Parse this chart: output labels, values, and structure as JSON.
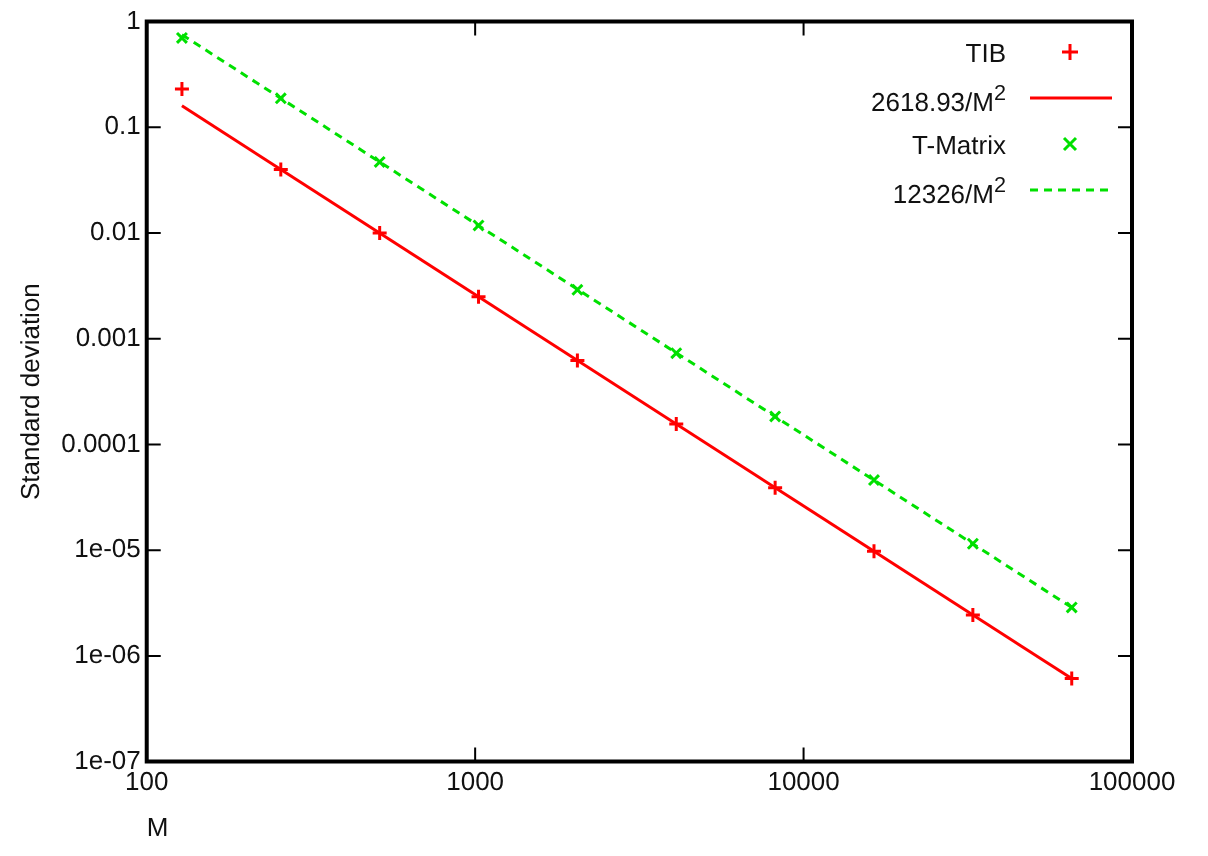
{
  "chart_data": {
    "type": "scatter",
    "xlabel": "M",
    "ylabel": "Standard deviation",
    "log": "xy",
    "grid": false,
    "legend": "top right",
    "xlim": [
      100,
      100000
    ],
    "xticks": [
      100,
      1000,
      10000,
      100000
    ],
    "ylim": [
      1e-07,
      1
    ],
    "yticks": [
      {
        "value": 1e-07,
        "label": "1e-07"
      },
      {
        "value": 1e-06,
        "label": "1e-06"
      },
      {
        "value": 1e-05,
        "label": "1e-05"
      },
      0.0001,
      0.001,
      0.01,
      0.1,
      1
    ],
    "series": [
      {
        "name": "TIB",
        "marker": "cross",
        "color": "#ff0000",
        "x": [
          128,
          256,
          512,
          1024,
          2048,
          4096,
          8192,
          16384,
          32768,
          65536
        ],
        "values": [
          0.23,
          0.04,
          0.01,
          0.0025,
          0.000624,
          0.000156,
          3.9e-05,
          9.76e-06,
          2.44e-06,
          6.1e-07
        ]
      },
      {
        "name": "2618.93/M$^{2}$",
        "type": "line",
        "marker": "none",
        "line_style": "solid",
        "color": "#ff0000",
        "x": [
          128,
          65536
        ],
        "values": [
          0.15985,
          6.1e-07
        ]
      },
      {
        "name": "T-Matrix",
        "marker": "x",
        "color": "#00e000",
        "x": [
          128,
          256,
          512,
          1024,
          2048,
          4096,
          8192,
          16384,
          32768,
          65536
        ],
        "values": [
          0.7,
          0.188,
          0.047,
          0.0118,
          0.0029,
          0.00073,
          0.000184,
          4.6e-05,
          1.15e-05,
          2.87e-06
        ]
      },
      {
        "name": "12326/M$^{2}$",
        "type": "line",
        "marker": "none",
        "line_style": "dashed",
        "color": "#00e000",
        "x": [
          128,
          65536
        ],
        "values": [
          0.7523,
          2.87e-06
        ]
      }
    ]
  }
}
